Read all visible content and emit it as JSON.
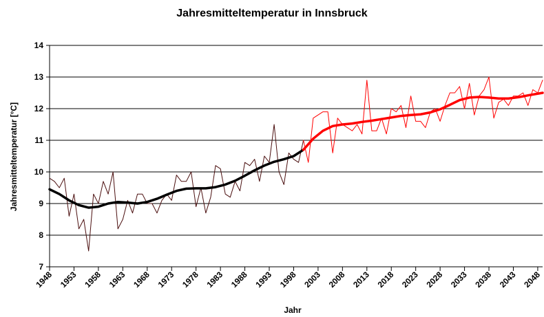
{
  "chart_data": {
    "type": "line",
    "title": "Jahresmitteltemperatur in Innsbruck",
    "x_label": "Jahr",
    "y_label": "Jahresmitteltemperatur [°C]",
    "xlim": [
      1948,
      2049
    ],
    "xticks": [
      1948,
      1953,
      1958,
      1963,
      1968,
      1973,
      1978,
      1983,
      1988,
      1993,
      1998,
      2003,
      2008,
      2013,
      2018,
      2023,
      2028,
      2033,
      2038,
      2043,
      2048
    ],
    "ylim": [
      7,
      14
    ],
    "yticks": [
      7,
      8,
      9,
      10,
      11,
      12,
      13,
      14
    ],
    "grid": true,
    "series": [
      {
        "color": "#4a0e0e",
        "width": 1,
        "x": [
          1948,
          1949,
          1950,
          1951,
          1952,
          1953,
          1954,
          1955,
          1956,
          1957,
          1958,
          1959,
          1960,
          1961,
          1962,
          1963,
          1964,
          1965,
          1966,
          1967,
          1968,
          1969,
          1970,
          1971,
          1972,
          1973,
          1974,
          1975,
          1976,
          1977,
          1978,
          1979,
          1980,
          1981,
          1982,
          1983,
          1984,
          1985,
          1986,
          1987,
          1988,
          1989,
          1990,
          1991,
          1992,
          1993,
          1994,
          1995,
          1996,
          1997,
          1998,
          1999,
          2000
        ],
        "values": [
          9.8,
          9.7,
          9.5,
          9.8,
          8.6,
          9.3,
          8.2,
          8.5,
          7.5,
          9.3,
          9.0,
          9.7,
          9.3,
          10.0,
          8.2,
          8.5,
          9.1,
          8.7,
          9.3,
          9.3,
          9.0,
          9.0,
          8.7,
          9.1,
          9.3,
          9.1,
          9.9,
          9.7,
          9.7,
          10.0,
          8.9,
          9.5,
          8.7,
          9.2,
          10.2,
          10.1,
          9.3,
          9.2,
          9.7,
          9.4,
          10.3,
          10.2,
          10.4,
          9.7,
          10.5,
          10.3,
          11.5,
          10.0,
          9.6,
          10.6,
          10.4,
          10.3,
          11.0
        ]
      },
      {
        "color": "#ff0000",
        "width": 1,
        "x": [
          2000,
          2001,
          2002,
          2003,
          2004,
          2005,
          2006,
          2007,
          2008,
          2009,
          2010,
          2011,
          2012,
          2013,
          2014,
          2015,
          2016,
          2017,
          2018,
          2019,
          2020,
          2021,
          2022,
          2023,
          2024,
          2025,
          2026,
          2027,
          2028,
          2029,
          2030,
          2031,
          2032,
          2033,
          2034,
          2035,
          2036,
          2037,
          2038,
          2039,
          2040,
          2041,
          2042,
          2043,
          2044,
          2045,
          2046,
          2047,
          2048,
          2049
        ],
        "values": [
          11.0,
          10.3,
          11.7,
          11.8,
          11.9,
          11.9,
          10.6,
          11.7,
          11.5,
          11.4,
          11.3,
          11.5,
          11.2,
          12.9,
          11.3,
          11.3,
          11.7,
          11.2,
          12.0,
          11.9,
          12.1,
          11.4,
          12.4,
          11.6,
          11.6,
          11.4,
          11.9,
          12.0,
          11.6,
          12.1,
          12.5,
          12.5,
          12.7,
          12.0,
          12.8,
          11.8,
          12.4,
          12.6,
          13.0,
          11.7,
          12.2,
          12.3,
          12.1,
          12.4,
          12.4,
          12.5,
          12.1,
          12.6,
          12.5,
          12.9
        ]
      },
      {
        "color": "#000000",
        "width": 3.5,
        "x": [
          1948,
          1950,
          1952,
          1954,
          1956,
          1958,
          1960,
          1962,
          1964,
          1966,
          1968,
          1970,
          1972,
          1974,
          1976,
          1978,
          1980,
          1982,
          1984,
          1986,
          1988,
          1990,
          1992,
          1994,
          1996,
          1998,
          2000
        ],
        "values": [
          9.45,
          9.3,
          9.1,
          8.95,
          8.87,
          8.9,
          9.0,
          9.05,
          9.03,
          9.0,
          9.05,
          9.15,
          9.28,
          9.4,
          9.47,
          9.48,
          9.48,
          9.52,
          9.6,
          9.72,
          9.88,
          10.05,
          10.2,
          10.32,
          10.4,
          10.5,
          10.7
        ]
      },
      {
        "color": "#ff0000",
        "width": 3.5,
        "x": [
          2000,
          2002,
          2004,
          2006,
          2008,
          2010,
          2012,
          2014,
          2016,
          2018,
          2020,
          2022,
          2024,
          2026,
          2028,
          2030,
          2032,
          2034,
          2036,
          2038,
          2040,
          2042,
          2044,
          2046,
          2049
        ],
        "values": [
          10.7,
          11.05,
          11.3,
          11.45,
          11.5,
          11.53,
          11.58,
          11.62,
          11.67,
          11.72,
          11.77,
          11.8,
          11.82,
          11.88,
          11.98,
          12.12,
          12.27,
          12.35,
          12.37,
          12.35,
          12.32,
          12.32,
          12.36,
          12.42,
          12.5
        ]
      }
    ]
  }
}
